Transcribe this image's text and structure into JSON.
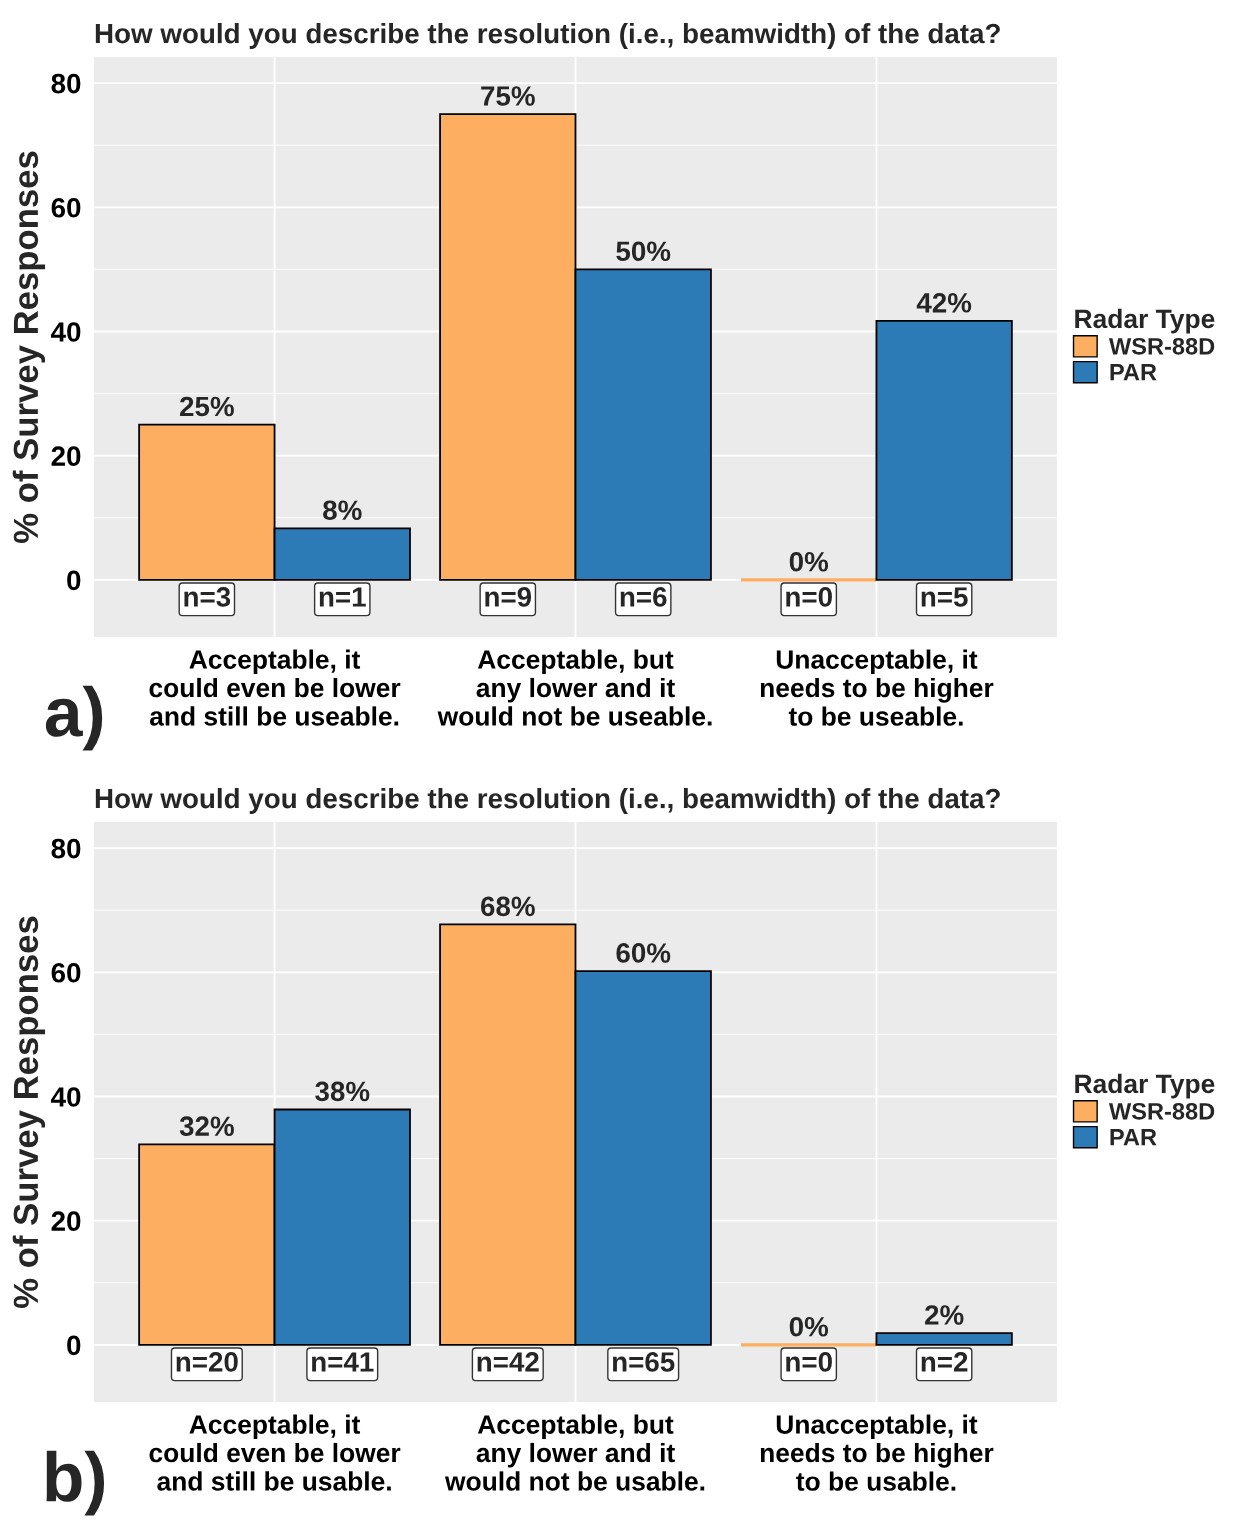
{
  "chart_data": [
    {
      "type": "bar",
      "title": "How would you describe the resolution (i.e., beamwidth) of the data?",
      "ylabel": "% of Survey Responses",
      "categories": [
        "Acceptable, it\ncould even be lower\nand still be useable.",
        "Acceptable, but\nany lower and it\nwould not be useable.",
        "Unacceptable, it\nneeds to be higher\nto be useable."
      ],
      "series": [
        {
          "name": "WSR-88D",
          "color": "#fdae61",
          "values": [
            25,
            75,
            0
          ],
          "value_labels": [
            "25%",
            "75%",
            "0%"
          ]
        },
        {
          "name": "PAR",
          "color": "#2c7bb6",
          "values": [
            8.3,
            50,
            41.7
          ],
          "value_labels": [
            "8%",
            "50%",
            "42%"
          ]
        }
      ],
      "ylim": [
        -9.2,
        84.2
      ],
      "yticks": [
        0,
        20,
        40,
        60,
        80
      ],
      "grid": true,
      "legend": "right",
      "legend_title": "Radar Type",
      "annotations": [
        "n=3",
        "n=1",
        "n=9",
        "n=6",
        "n=0",
        "n=5",
        "a)"
      ]
    },
    {
      "type": "bar",
      "title": "How would you describe the resolution (i.e., beamwidth) of the data?",
      "ylabel": "% of Survey Responses",
      "categories": [
        "Acceptable, it\ncould even be lower\nand still be usable.",
        "Acceptable, but\nany lower and it\nwould not be usable.",
        "Unacceptable, it\nneeds to be higher\nto be usable."
      ],
      "series": [
        {
          "name": "WSR-88D",
          "color": "#fdae61",
          "values": [
            32.3,
            67.7,
            0
          ],
          "value_labels": [
            "32%",
            "68%",
            "0%"
          ]
        },
        {
          "name": "PAR",
          "color": "#2c7bb6",
          "values": [
            37.9,
            60.2,
            1.9
          ],
          "value_labels": [
            "38%",
            "60%",
            "2%"
          ]
        }
      ],
      "ylim": [
        -9.2,
        84.2
      ],
      "yticks": [
        0,
        20,
        40,
        60,
        80
      ],
      "grid": true,
      "legend": "right",
      "legend_title": "Radar Type",
      "annotations": [
        "n=20",
        "n=41",
        "n=42",
        "n=65",
        "n=0",
        "n=2",
        "b)"
      ]
    }
  ]
}
